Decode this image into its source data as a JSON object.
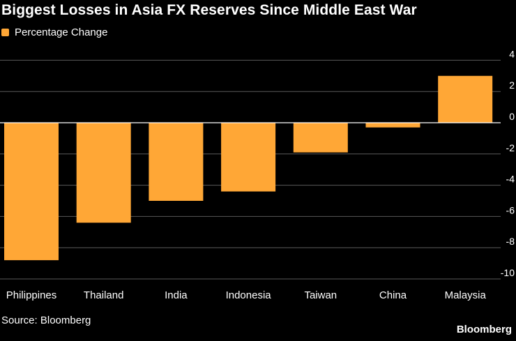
{
  "title": "Biggest Losses in Asia FX Reserves Since Middle East War",
  "legend": {
    "label": "Percentage Change",
    "color": "#FFA736"
  },
  "source": "Source: Bloomberg",
  "brand": "Bloomberg",
  "colors": {
    "background": "#000000",
    "bar": "#FFA736",
    "grid": "#5a5a5a",
    "zero_line": "#ffffff",
    "text": "#ffffff"
  },
  "chart_data": {
    "type": "bar",
    "title": "Biggest Losses in Asia FX Reserves Since Middle East War",
    "categories": [
      "Philippines",
      "Thailand",
      "India",
      "Indonesia",
      "Taiwan",
      "China",
      "Malaysia"
    ],
    "series": [
      {
        "name": "Percentage Change",
        "values": [
          -8.8,
          -6.4,
          -5.0,
          -4.4,
          -1.9,
          -0.3,
          3.0
        ]
      }
    ],
    "ylim": [
      -10,
      4
    ],
    "yticks": [
      4,
      2,
      0,
      -2,
      -4,
      -6,
      -8,
      -10
    ],
    "ytick_labels": [
      "4",
      "2",
      "0",
      "-2",
      "-4",
      "-6",
      "-8",
      "-10"
    ],
    "grid": true,
    "y_axis_position": "right",
    "legend_position": "top-left"
  }
}
